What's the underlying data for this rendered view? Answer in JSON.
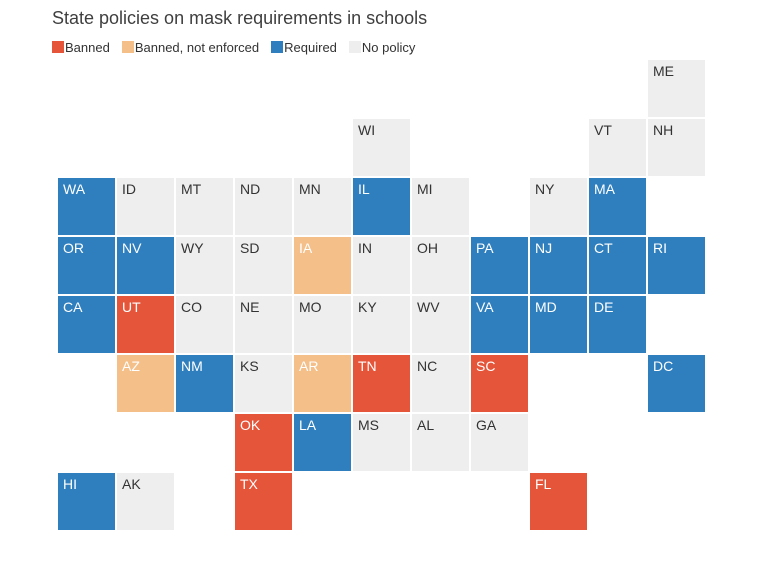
{
  "title": "State policies on mask requirements in schools",
  "legend": [
    {
      "key": "banned",
      "label": "Banned",
      "color": "#e5553a"
    },
    {
      "key": "banned_ne",
      "label": "Banned, not enforced",
      "color": "#f4bf89"
    },
    {
      "key": "required",
      "label": "Required",
      "color": "#2f7fbf"
    },
    {
      "key": "none",
      "label": "No policy",
      "color": "#eeeeee"
    }
  ],
  "states": [
    {
      "abbr": "ME",
      "col": 10,
      "row": 0,
      "policy": "none"
    },
    {
      "abbr": "WI",
      "col": 5,
      "row": 1,
      "policy": "none"
    },
    {
      "abbr": "VT",
      "col": 9,
      "row": 1,
      "policy": "none"
    },
    {
      "abbr": "NH",
      "col": 10,
      "row": 1,
      "policy": "none"
    },
    {
      "abbr": "WA",
      "col": 0,
      "row": 2,
      "policy": "required"
    },
    {
      "abbr": "ID",
      "col": 1,
      "row": 2,
      "policy": "none"
    },
    {
      "abbr": "MT",
      "col": 2,
      "row": 2,
      "policy": "none"
    },
    {
      "abbr": "ND",
      "col": 3,
      "row": 2,
      "policy": "none"
    },
    {
      "abbr": "MN",
      "col": 4,
      "row": 2,
      "policy": "none"
    },
    {
      "abbr": "IL",
      "col": 5,
      "row": 2,
      "policy": "required"
    },
    {
      "abbr": "MI",
      "col": 6,
      "row": 2,
      "policy": "none"
    },
    {
      "abbr": "NY",
      "col": 8,
      "row": 2,
      "policy": "none"
    },
    {
      "abbr": "MA",
      "col": 9,
      "row": 2,
      "policy": "required"
    },
    {
      "abbr": "OR",
      "col": 0,
      "row": 3,
      "policy": "required"
    },
    {
      "abbr": "NV",
      "col": 1,
      "row": 3,
      "policy": "required"
    },
    {
      "abbr": "WY",
      "col": 2,
      "row": 3,
      "policy": "none"
    },
    {
      "abbr": "SD",
      "col": 3,
      "row": 3,
      "policy": "none"
    },
    {
      "abbr": "IA",
      "col": 4,
      "row": 3,
      "policy": "banned_ne"
    },
    {
      "abbr": "IN",
      "col": 5,
      "row": 3,
      "policy": "none"
    },
    {
      "abbr": "OH",
      "col": 6,
      "row": 3,
      "policy": "none"
    },
    {
      "abbr": "PA",
      "col": 7,
      "row": 3,
      "policy": "required"
    },
    {
      "abbr": "NJ",
      "col": 8,
      "row": 3,
      "policy": "required"
    },
    {
      "abbr": "CT",
      "col": 9,
      "row": 3,
      "policy": "required"
    },
    {
      "abbr": "RI",
      "col": 10,
      "row": 3,
      "policy": "required"
    },
    {
      "abbr": "CA",
      "col": 0,
      "row": 4,
      "policy": "required"
    },
    {
      "abbr": "UT",
      "col": 1,
      "row": 4,
      "policy": "banned"
    },
    {
      "abbr": "CO",
      "col": 2,
      "row": 4,
      "policy": "none"
    },
    {
      "abbr": "NE",
      "col": 3,
      "row": 4,
      "policy": "none"
    },
    {
      "abbr": "MO",
      "col": 4,
      "row": 4,
      "policy": "none"
    },
    {
      "abbr": "KY",
      "col": 5,
      "row": 4,
      "policy": "none"
    },
    {
      "abbr": "WV",
      "col": 6,
      "row": 4,
      "policy": "none"
    },
    {
      "abbr": "VA",
      "col": 7,
      "row": 4,
      "policy": "required"
    },
    {
      "abbr": "MD",
      "col": 8,
      "row": 4,
      "policy": "required"
    },
    {
      "abbr": "DE",
      "col": 9,
      "row": 4,
      "policy": "required"
    },
    {
      "abbr": "AZ",
      "col": 1,
      "row": 5,
      "policy": "banned_ne"
    },
    {
      "abbr": "NM",
      "col": 2,
      "row": 5,
      "policy": "required"
    },
    {
      "abbr": "KS",
      "col": 3,
      "row": 5,
      "policy": "none"
    },
    {
      "abbr": "AR",
      "col": 4,
      "row": 5,
      "policy": "banned_ne"
    },
    {
      "abbr": "TN",
      "col": 5,
      "row": 5,
      "policy": "banned"
    },
    {
      "abbr": "NC",
      "col": 6,
      "row": 5,
      "policy": "none"
    },
    {
      "abbr": "SC",
      "col": 7,
      "row": 5,
      "policy": "banned"
    },
    {
      "abbr": "DC",
      "col": 10,
      "row": 5,
      "policy": "required"
    },
    {
      "abbr": "OK",
      "col": 3,
      "row": 6,
      "policy": "banned"
    },
    {
      "abbr": "LA",
      "col": 4,
      "row": 6,
      "policy": "required"
    },
    {
      "abbr": "MS",
      "col": 5,
      "row": 6,
      "policy": "none"
    },
    {
      "abbr": "AL",
      "col": 6,
      "row": 6,
      "policy": "none"
    },
    {
      "abbr": "GA",
      "col": 7,
      "row": 6,
      "policy": "none"
    },
    {
      "abbr": "HI",
      "col": 0,
      "row": 7,
      "policy": "required"
    },
    {
      "abbr": "AK",
      "col": 1,
      "row": 7,
      "policy": "none"
    },
    {
      "abbr": "TX",
      "col": 3,
      "row": 7,
      "policy": "banned"
    },
    {
      "abbr": "FL",
      "col": 8,
      "row": 7,
      "policy": "banned"
    }
  ]
}
